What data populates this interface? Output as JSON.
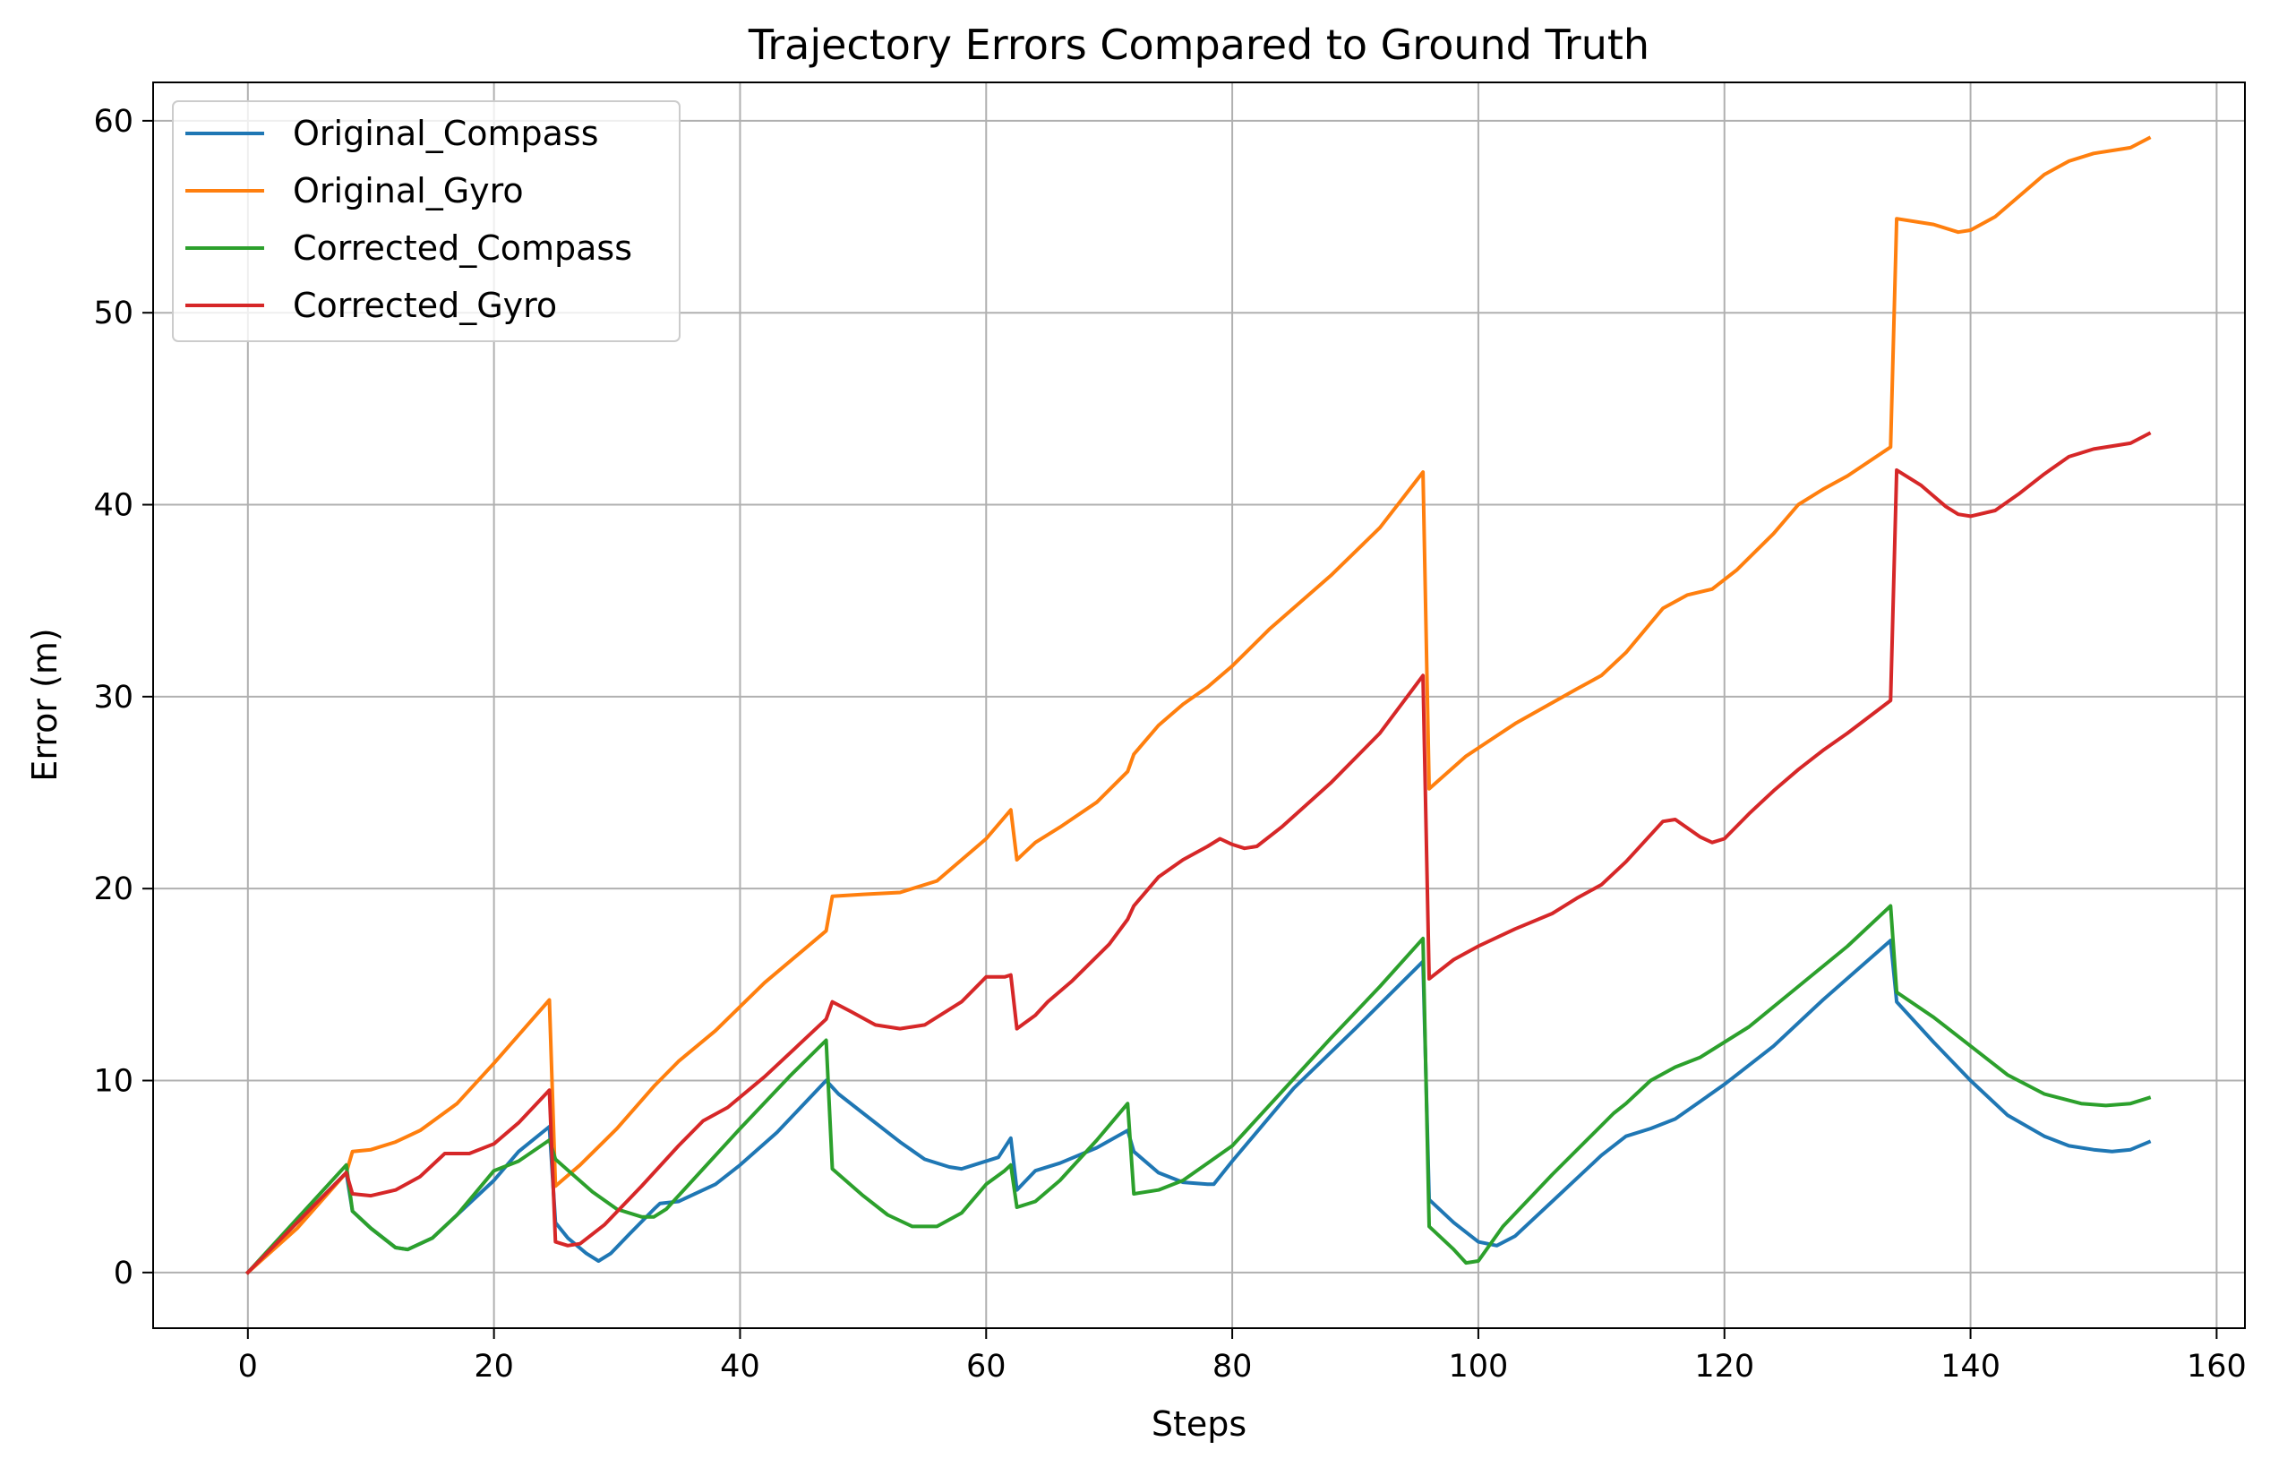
{
  "chart_data": {
    "type": "line",
    "title": "Trajectory Errors Compared to Ground Truth",
    "xlabel": "Steps",
    "ylabel": "Error (m)",
    "xlim": [
      -7.7,
      162.3
    ],
    "ylim": [
      -2.9,
      62.0
    ],
    "x_ticks": [
      0,
      20,
      40,
      60,
      80,
      100,
      120,
      140,
      160
    ],
    "y_ticks": [
      0,
      10,
      20,
      30,
      40,
      50,
      60
    ],
    "grid": true,
    "legend_position": "top-left",
    "series": [
      {
        "name": "Original_Compass",
        "color": "#1f77b4",
        "points": [
          [
            0,
            0
          ],
          [
            8,
            5.2
          ],
          [
            8.5,
            3.2
          ],
          [
            10,
            2.3
          ],
          [
            12,
            1.3
          ],
          [
            13,
            1.2
          ],
          [
            15,
            1.8
          ],
          [
            17,
            3
          ],
          [
            20,
            4.8
          ],
          [
            22,
            6.3
          ],
          [
            24.5,
            7.6
          ],
          [
            25,
            2.6
          ],
          [
            26,
            1.8
          ],
          [
            27.5,
            1
          ],
          [
            28.5,
            0.6
          ],
          [
            29.5,
            1
          ],
          [
            31,
            2
          ],
          [
            33,
            3.3
          ],
          [
            33.5,
            3.6
          ],
          [
            35,
            3.7
          ],
          [
            38,
            4.6
          ],
          [
            40,
            5.6
          ],
          [
            43,
            7.3
          ],
          [
            47,
            10
          ],
          [
            48,
            9.3
          ],
          [
            50,
            8.3
          ],
          [
            53,
            6.8
          ],
          [
            55,
            5.9
          ],
          [
            57,
            5.5
          ],
          [
            58,
            5.4
          ],
          [
            59,
            5.6
          ],
          [
            61,
            6
          ],
          [
            62,
            7
          ],
          [
            62.5,
            4.3
          ],
          [
            64,
            5.3
          ],
          [
            66,
            5.7
          ],
          [
            69,
            6.5
          ],
          [
            71.5,
            7.4
          ],
          [
            72,
            6.3
          ],
          [
            74,
            5.2
          ],
          [
            76,
            4.7
          ],
          [
            78,
            4.6
          ],
          [
            78.5,
            4.6
          ],
          [
            80,
            5.8
          ],
          [
            85,
            9.6
          ],
          [
            90,
            12.7
          ],
          [
            95.5,
            16.2
          ],
          [
            96,
            3.8
          ],
          [
            98,
            2.6
          ],
          [
            100,
            1.6
          ],
          [
            101.5,
            1.4
          ],
          [
            103,
            1.9
          ],
          [
            106,
            3.7
          ],
          [
            110,
            6.1
          ],
          [
            112,
            7.1
          ],
          [
            114,
            7.5
          ],
          [
            116,
            8
          ],
          [
            118,
            8.9
          ],
          [
            120,
            9.8
          ],
          [
            124,
            11.8
          ],
          [
            128,
            14.2
          ],
          [
            133.5,
            17.3
          ],
          [
            134,
            14.1
          ],
          [
            137,
            12
          ],
          [
            140,
            10
          ],
          [
            143,
            8.2
          ],
          [
            146,
            7.1
          ],
          [
            148,
            6.6
          ],
          [
            150,
            6.4
          ],
          [
            151.5,
            6.3
          ],
          [
            153,
            6.4
          ],
          [
            154.5,
            6.8
          ]
        ]
      },
      {
        "name": "Original_Gyro",
        "color": "#ff7f0e",
        "points": [
          [
            0,
            0
          ],
          [
            4,
            2.3
          ],
          [
            8,
            5.2
          ],
          [
            8.5,
            6.3
          ],
          [
            10,
            6.4
          ],
          [
            12,
            6.8
          ],
          [
            14,
            7.4
          ],
          [
            17,
            8.8
          ],
          [
            20,
            10.9
          ],
          [
            24.5,
            14.2
          ],
          [
            25,
            4.5
          ],
          [
            27,
            5.6
          ],
          [
            30,
            7.5
          ],
          [
            33,
            9.7
          ],
          [
            35,
            11
          ],
          [
            38,
            12.6
          ],
          [
            42,
            15.1
          ],
          [
            47,
            17.8
          ],
          [
            47.5,
            19.6
          ],
          [
            50,
            19.7
          ],
          [
            53,
            19.8
          ],
          [
            56,
            20.4
          ],
          [
            60,
            22.6
          ],
          [
            62,
            24.1
          ],
          [
            62.5,
            21.5
          ],
          [
            64,
            22.4
          ],
          [
            66,
            23.2
          ],
          [
            69,
            24.5
          ],
          [
            71.5,
            26.1
          ],
          [
            72,
            27
          ],
          [
            74,
            28.5
          ],
          [
            76,
            29.6
          ],
          [
            78,
            30.5
          ],
          [
            80,
            31.6
          ],
          [
            83,
            33.5
          ],
          [
            88,
            36.3
          ],
          [
            92,
            38.8
          ],
          [
            95.5,
            41.7
          ],
          [
            96,
            25.2
          ],
          [
            99,
            26.9
          ],
          [
            103,
            28.6
          ],
          [
            108,
            30.4
          ],
          [
            110,
            31.1
          ],
          [
            112,
            32.3
          ],
          [
            115,
            34.6
          ],
          [
            117,
            35.3
          ],
          [
            119,
            35.6
          ],
          [
            121,
            36.6
          ],
          [
            124,
            38.5
          ],
          [
            126,
            40
          ],
          [
            128,
            40.8
          ],
          [
            130,
            41.5
          ],
          [
            133.5,
            43
          ],
          [
            134,
            54.9
          ],
          [
            137,
            54.6
          ],
          [
            139,
            54.2
          ],
          [
            140,
            54.3
          ],
          [
            142,
            55
          ],
          [
            144,
            56.1
          ],
          [
            146,
            57.2
          ],
          [
            148,
            57.9
          ],
          [
            150,
            58.3
          ],
          [
            153,
            58.6
          ],
          [
            154.5,
            59.1
          ]
        ]
      },
      {
        "name": "Corrected_Compass",
        "color": "#2ca02c",
        "points": [
          [
            0,
            0
          ],
          [
            8,
            5.6
          ],
          [
            8.5,
            3.2
          ],
          [
            10,
            2.3
          ],
          [
            12,
            1.3
          ],
          [
            13,
            1.2
          ],
          [
            15,
            1.8
          ],
          [
            17,
            3
          ],
          [
            20,
            5.3
          ],
          [
            22,
            5.8
          ],
          [
            24.5,
            6.9
          ],
          [
            25,
            5.9
          ],
          [
            28,
            4.2
          ],
          [
            30,
            3.3
          ],
          [
            32,
            2.9
          ],
          [
            33,
            2.9
          ],
          [
            34,
            3.3
          ],
          [
            37,
            5.4
          ],
          [
            40,
            7.5
          ],
          [
            44,
            10.2
          ],
          [
            47,
            12.1
          ],
          [
            47.5,
            5.4
          ],
          [
            50,
            4
          ],
          [
            52,
            3
          ],
          [
            54,
            2.4
          ],
          [
            56,
            2.4
          ],
          [
            58,
            3.1
          ],
          [
            60,
            4.6
          ],
          [
            61.5,
            5.3
          ],
          [
            62,
            5.6
          ],
          [
            62.5,
            3.4
          ],
          [
            64,
            3.7
          ],
          [
            66,
            4.8
          ],
          [
            69,
            6.9
          ],
          [
            71.5,
            8.8
          ],
          [
            72,
            4.1
          ],
          [
            74,
            4.3
          ],
          [
            76,
            4.8
          ],
          [
            78,
            5.7
          ],
          [
            80,
            6.6
          ],
          [
            84,
            9.4
          ],
          [
            88,
            12.2
          ],
          [
            92,
            14.9
          ],
          [
            95.5,
            17.4
          ],
          [
            96,
            2.4
          ],
          [
            98,
            1.2
          ],
          [
            99,
            0.5
          ],
          [
            100,
            0.6
          ],
          [
            102,
            2.4
          ],
          [
            106,
            5.1
          ],
          [
            111,
            8.3
          ],
          [
            112,
            8.8
          ],
          [
            114,
            10
          ],
          [
            116,
            10.7
          ],
          [
            118,
            11.2
          ],
          [
            122,
            12.8
          ],
          [
            126,
            14.9
          ],
          [
            130,
            17
          ],
          [
            133.5,
            19.1
          ],
          [
            134,
            14.6
          ],
          [
            137,
            13.3
          ],
          [
            140,
            11.8
          ],
          [
            143,
            10.3
          ],
          [
            146,
            9.3
          ],
          [
            149,
            8.8
          ],
          [
            151,
            8.7
          ],
          [
            153,
            8.8
          ],
          [
            154.5,
            9.1
          ]
        ]
      },
      {
        "name": "Corrected_Gyro",
        "color": "#d62728",
        "points": [
          [
            0,
            0
          ],
          [
            8,
            5.2
          ],
          [
            8.5,
            4.1
          ],
          [
            10,
            4
          ],
          [
            12,
            4.3
          ],
          [
            14,
            5
          ],
          [
            16,
            6.2
          ],
          [
            18,
            6.2
          ],
          [
            20,
            6.7
          ],
          [
            22,
            7.8
          ],
          [
            24.5,
            9.5
          ],
          [
            25,
            1.6
          ],
          [
            26,
            1.4
          ],
          [
            27,
            1.5
          ],
          [
            29,
            2.5
          ],
          [
            32,
            4.5
          ],
          [
            35,
            6.6
          ],
          [
            37,
            7.9
          ],
          [
            39,
            8.6
          ],
          [
            42,
            10.2
          ],
          [
            45,
            12
          ],
          [
            47,
            13.2
          ],
          [
            47.5,
            14.1
          ],
          [
            49,
            13.6
          ],
          [
            51,
            12.9
          ],
          [
            53,
            12.7
          ],
          [
            55,
            12.9
          ],
          [
            58,
            14.1
          ],
          [
            60,
            15.4
          ],
          [
            61.5,
            15.4
          ],
          [
            62,
            15.5
          ],
          [
            62.5,
            12.7
          ],
          [
            64,
            13.4
          ],
          [
            65,
            14.1
          ],
          [
            67,
            15.2
          ],
          [
            70,
            17.1
          ],
          [
            71.5,
            18.4
          ],
          [
            72,
            19.1
          ],
          [
            74,
            20.6
          ],
          [
            76,
            21.5
          ],
          [
            78,
            22.2
          ],
          [
            79,
            22.6
          ],
          [
            80,
            22.3
          ],
          [
            81,
            22.1
          ],
          [
            82,
            22.2
          ],
          [
            84,
            23.2
          ],
          [
            88,
            25.5
          ],
          [
            92,
            28.1
          ],
          [
            95.5,
            31.1
          ],
          [
            96,
            15.3
          ],
          [
            98,
            16.3
          ],
          [
            100,
            17
          ],
          [
            103,
            17.9
          ],
          [
            106,
            18.7
          ],
          [
            108,
            19.5
          ],
          [
            110,
            20.2
          ],
          [
            112,
            21.4
          ],
          [
            115,
            23.5
          ],
          [
            116,
            23.6
          ],
          [
            118,
            22.7
          ],
          [
            119,
            22.4
          ],
          [
            120,
            22.6
          ],
          [
            122,
            23.9
          ],
          [
            124,
            25.1
          ],
          [
            126,
            26.2
          ],
          [
            128,
            27.2
          ],
          [
            130,
            28.1
          ],
          [
            133.5,
            29.8
          ],
          [
            134,
            41.8
          ],
          [
            136,
            41
          ],
          [
            138,
            39.9
          ],
          [
            139,
            39.5
          ],
          [
            140,
            39.4
          ],
          [
            142,
            39.7
          ],
          [
            144,
            40.6
          ],
          [
            146,
            41.6
          ],
          [
            148,
            42.5
          ],
          [
            150,
            42.9
          ],
          [
            153,
            43.2
          ],
          [
            154.5,
            43.7
          ]
        ]
      }
    ]
  }
}
